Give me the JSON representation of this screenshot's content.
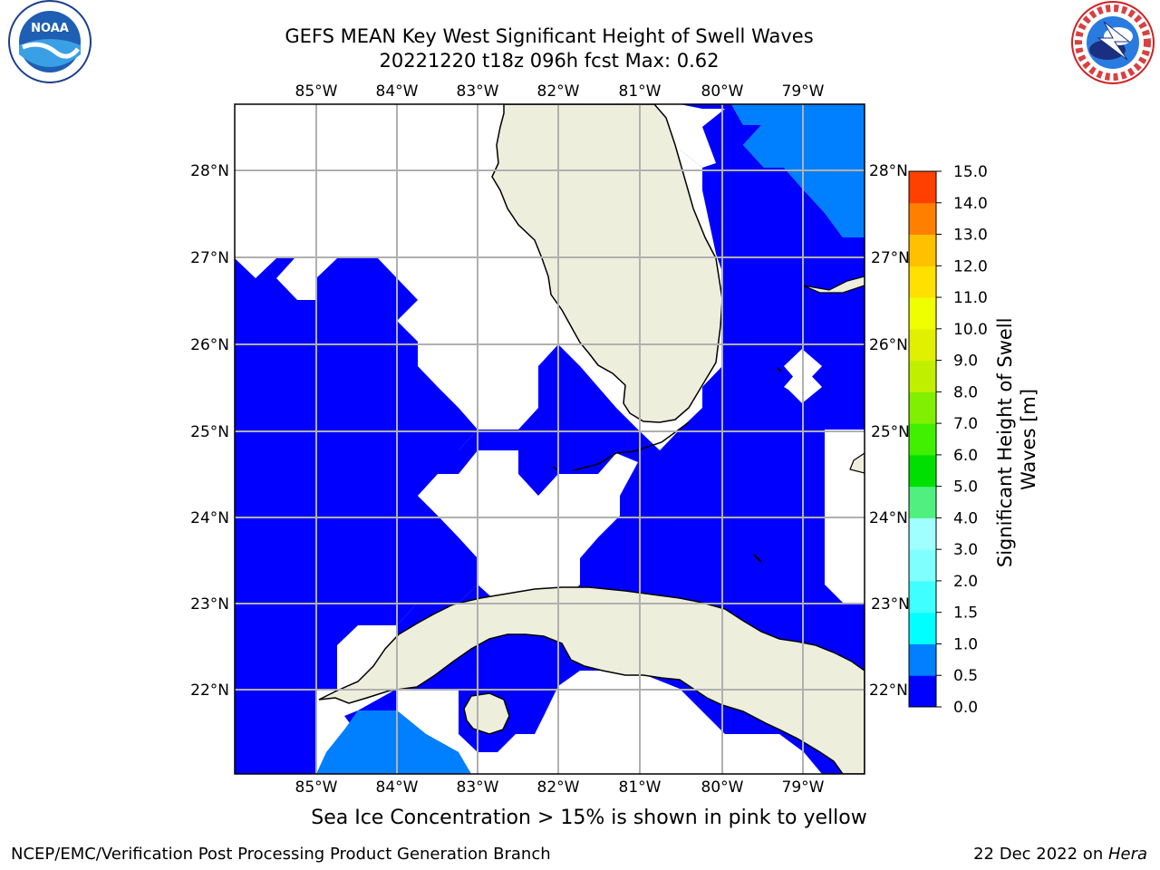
{
  "title_line1": "GEFS MEAN Key West Significant Height of Swell Waves",
  "title_line2": "20221220 t18z 096h fcst   Max: 0.62",
  "logos": {
    "left": "noaa-logo",
    "right": "national-weather-service-logo"
  },
  "map": {
    "lon_ticks": [
      "85°W",
      "84°W",
      "83°W",
      "82°W",
      "81°W",
      "80°W",
      "79°W"
    ],
    "lat_ticks": [
      "28°N",
      "27°N",
      "26°N",
      "25°N",
      "24°N",
      "23°N",
      "22°N"
    ],
    "colors": {
      "land": "#eeeedd",
      "ocean_low": "#0000ff",
      "ocean_mid": "#0080ff",
      "grid": "#b0b0b0"
    }
  },
  "colorbar": {
    "label": "Significant Height of Swell Waves [m]",
    "label_line1": "Significant Height of Swell",
    "label_line2": "Waves [m]",
    "levels": [
      "0.0",
      "0.5",
      "1.0",
      "1.5",
      "2.0",
      "3.0",
      "4.0",
      "5.0",
      "6.0",
      "7.0",
      "8.0",
      "9.0",
      "10.0",
      "11.0",
      "12.0",
      "13.0",
      "14.0",
      "15.0"
    ],
    "colors": [
      "#0000ff",
      "#0080ff",
      "#00ffff",
      "#40ffff",
      "#80ffff",
      "#a0ffff",
      "#50f080",
      "#00e000",
      "#40f000",
      "#80f000",
      "#c0f000",
      "#e0f000",
      "#f0ff00",
      "#ffe000",
      "#ffc000",
      "#ff8000",
      "#ff4000",
      "#ff0000"
    ]
  },
  "sea_ice_note": "Sea Ice Concentration > 15% is shown in pink to yellow",
  "footer": {
    "left": "NCEP/EMC/Verification Post Processing Product Generation Branch",
    "date": "22 Dec 2022 on ",
    "host": "Hera"
  }
}
